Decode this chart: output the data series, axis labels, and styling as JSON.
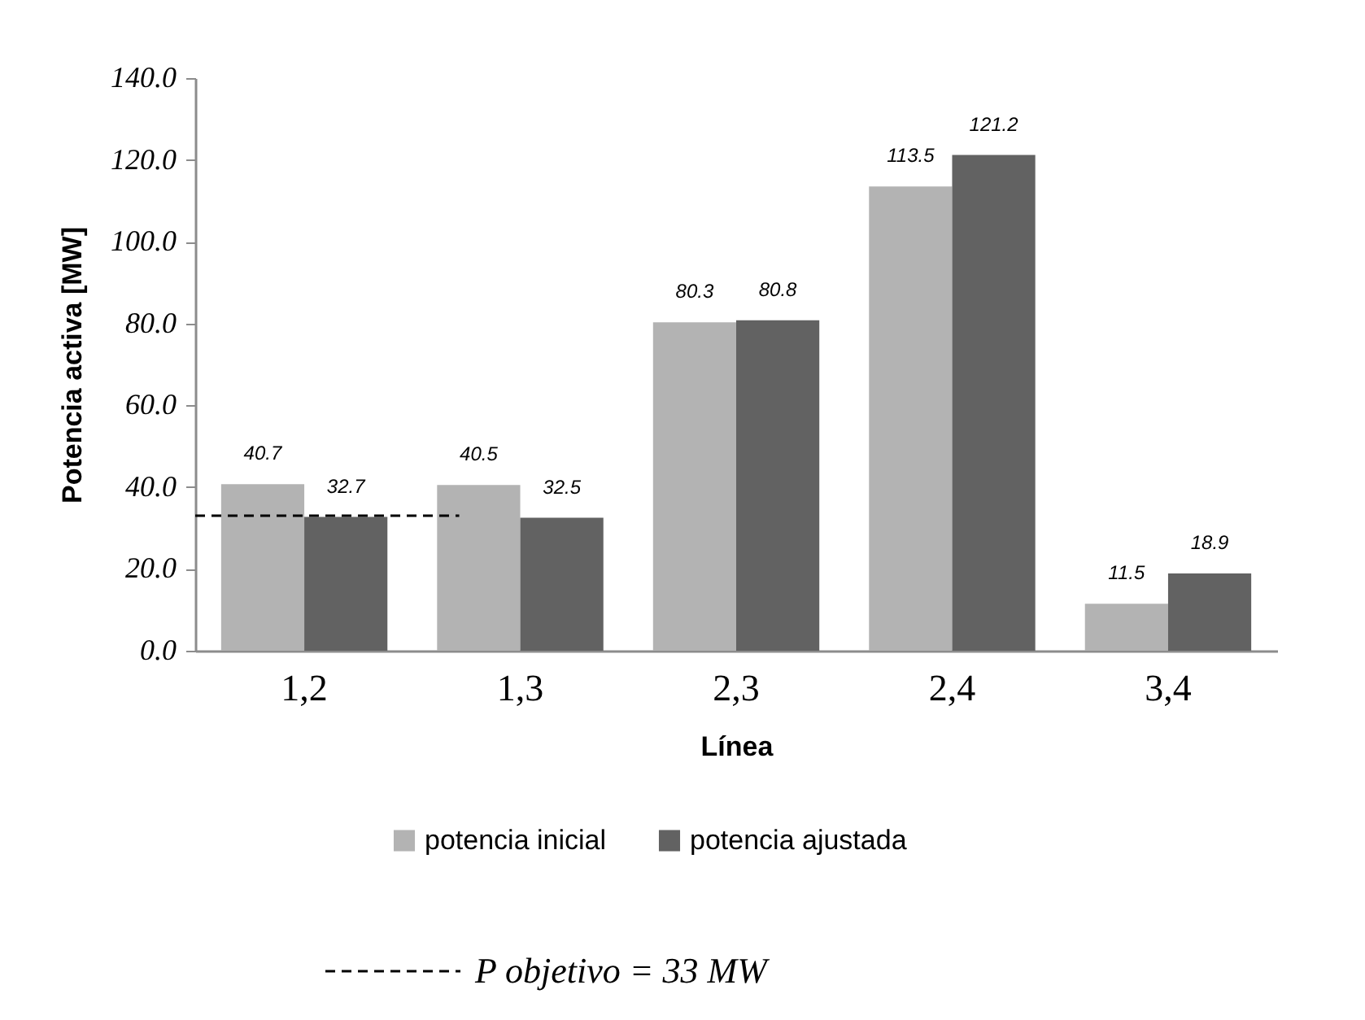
{
  "chart_data": {
    "type": "bar",
    "xlabel": "Línea",
    "ylabel": "Potencia activa [MW]",
    "categories": [
      "1,2",
      "1,3",
      "2,3",
      "2,4",
      "3,4"
    ],
    "series": [
      {
        "name": "potencia inicial",
        "color": "#b3b3b3",
        "values": [
          40.7,
          40.5,
          80.3,
          113.5,
          11.5
        ]
      },
      {
        "name": "potencia ajustada",
        "color": "#626262",
        "values": [
          32.7,
          32.5,
          80.8,
          121.2,
          18.9
        ]
      }
    ],
    "ylim": [
      0,
      140
    ],
    "yticks": [
      {
        "value": 0,
        "label": "0.0"
      },
      {
        "value": 20,
        "label": "20.0"
      },
      {
        "value": 40,
        "label": "40.0"
      },
      {
        "value": 60,
        "label": "60.0"
      },
      {
        "value": 80,
        "label": "80.0"
      },
      {
        "value": 100,
        "label": "100.0"
      },
      {
        "value": 120,
        "label": "120.0"
      },
      {
        "value": 140,
        "label": "140.0"
      }
    ],
    "data_labels": true,
    "legend": "bottom",
    "ref_lines": [
      {
        "axis": "y",
        "value": 33,
        "label": "P objetivo = 33 MW",
        "line_style": "dashed",
        "color": "#000000"
      }
    ]
  }
}
